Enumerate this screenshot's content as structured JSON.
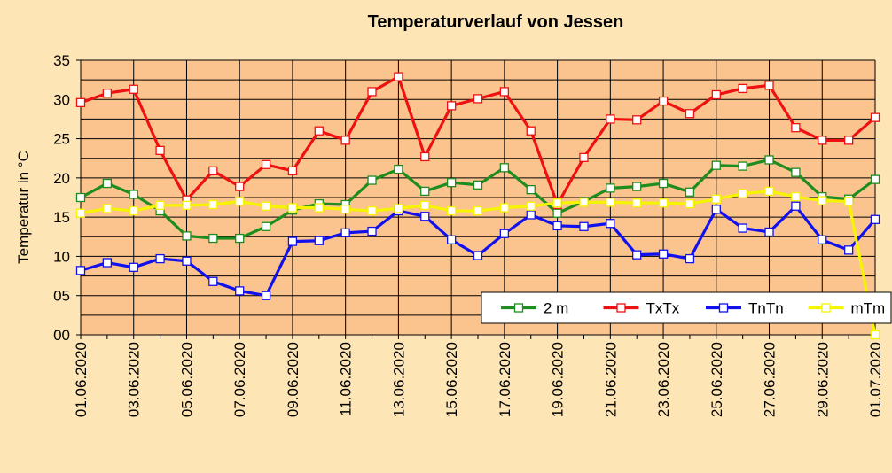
{
  "chart_data": {
    "type": "line",
    "title": "Temperaturverlauf von Jessen",
    "ylabel": "Temperatur in °C",
    "xlabel": "",
    "ylim": [
      0,
      35
    ],
    "ytick_labels": [
      "00",
      "05",
      "10",
      "15",
      "20",
      "25",
      "30",
      "35"
    ],
    "grid": true,
    "legend_position": "bottom-right",
    "plot_background": "#fbc48f",
    "page_background": "#fde5b5",
    "x": [
      "01.06.2020",
      "02.06.2020",
      "03.06.2020",
      "04.06.2020",
      "05.06.2020",
      "06.06.2020",
      "07.06.2020",
      "08.06.2020",
      "09.06.2020",
      "10.06.2020",
      "11.06.2020",
      "12.06.2020",
      "13.06.2020",
      "14.06.2020",
      "15.06.2020",
      "16.06.2020",
      "17.06.2020",
      "18.06.2020",
      "19.06.2020",
      "20.06.2020",
      "21.06.2020",
      "22.06.2020",
      "23.06.2020",
      "24.06.2020",
      "25.06.2020",
      "26.06.2020",
      "27.06.2020",
      "28.06.2020",
      "29.06.2020",
      "30.06.2020",
      "01.07.2020"
    ],
    "x_tick_labels": [
      "01.06.2020",
      "03.06.2020",
      "05.06.2020",
      "07.06.2020",
      "09.06.2020",
      "11.06.2020",
      "13.06.2020",
      "15.06.2020",
      "17.06.2020",
      "19.06.2020",
      "21.06.2020",
      "23.06.2020",
      "25.06.2020",
      "27.06.2020",
      "29.06.2020",
      "01.07.2020"
    ],
    "series": [
      {
        "name": "2 m",
        "color": "#1e8c1e",
        "values": [
          17.5,
          19.3,
          17.9,
          15.8,
          12.6,
          12.3,
          12.3,
          13.8,
          15.9,
          16.7,
          16.6,
          19.7,
          21.1,
          18.3,
          19.4,
          19.1,
          21.3,
          18.5,
          15.5,
          17.0,
          18.7,
          18.9,
          19.3,
          18.2,
          21.6,
          21.5,
          22.3,
          20.7,
          17.6,
          17.3,
          19.8
        ]
      },
      {
        "name": "TxTx",
        "color": "#ee1111",
        "values": [
          29.6,
          30.8,
          31.3,
          23.5,
          17.2,
          20.9,
          18.9,
          21.7,
          20.9,
          26.0,
          24.8,
          31.0,
          32.9,
          22.7,
          29.2,
          30.1,
          31.0,
          26.0,
          16.6,
          22.6,
          27.5,
          27.4,
          29.8,
          28.2,
          30.6,
          31.4,
          31.8,
          26.4,
          24.8,
          24.8,
          27.7
        ]
      },
      {
        "name": "TnTn",
        "color": "#1111ee",
        "values": [
          8.2,
          9.2,
          8.6,
          9.7,
          9.4,
          6.8,
          5.6,
          5.0,
          11.9,
          12.0,
          13.0,
          13.2,
          15.8,
          15.1,
          12.1,
          10.1,
          12.9,
          15.3,
          13.9,
          13.8,
          14.2,
          10.2,
          10.3,
          9.7,
          16.0,
          13.6,
          13.1,
          16.4,
          12.1,
          10.8,
          14.7
        ]
      },
      {
        "name": "mTm",
        "color": "#f5f500",
        "values": [
          15.5,
          16.1,
          15.8,
          16.5,
          16.5,
          16.6,
          17.0,
          16.4,
          16.2,
          16.2,
          16.0,
          15.8,
          16.1,
          16.5,
          15.8,
          15.8,
          16.2,
          16.4,
          16.8,
          16.9,
          16.9,
          16.8,
          16.8,
          16.7,
          17.3,
          18.0,
          18.3,
          17.6,
          17.1,
          17.0,
          0.0
        ]
      }
    ]
  }
}
